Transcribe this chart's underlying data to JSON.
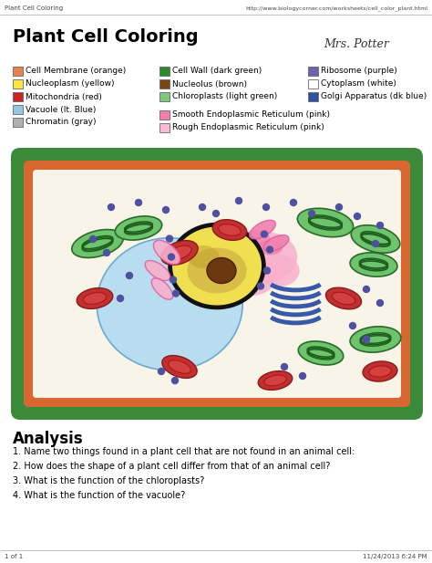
{
  "title": "Plant Cell Coloring",
  "header_left": "Plant Cell Coloring",
  "header_url": "http://www.biologycorner.com/worksheets/cell_color_plant.html",
  "handwriting": "Mrs. Potter",
  "legend_col1": [
    {
      "label": "Cell Membrane (orange)",
      "color": "#E8824A"
    },
    {
      "label": "Nucleoplasm (yellow)",
      "color": "#F5E642"
    },
    {
      "label": "Mitochondria (red)",
      "color": "#CC2222"
    },
    {
      "label": "Vacuole (lt. Blue)",
      "color": "#92C8E0"
    },
    {
      "label": "Chromatin (gray)",
      "color": "#B0B0B0"
    }
  ],
  "legend_col2": [
    {
      "label": "Cell Wall (dark green)",
      "color": "#2D8B2D"
    },
    {
      "label": "Nucleolus (brown)",
      "color": "#7B4513"
    },
    {
      "label": "Chloroplasts (light green)",
      "color": "#7DC87D"
    },
    {
      "label": "Smooth Endoplasmic Reticulum (pink)",
      "color": "#F47EB0"
    },
    {
      "label": "Rough Endoplasmic Reticulum (pink)",
      "color": "#F9B8D4"
    }
  ],
  "legend_col3": [
    {
      "label": "Ribosome (purple)",
      "color": "#7060B0"
    },
    {
      "label": "Cytoplasm (white)",
      "color": "#FFFFFF"
    },
    {
      "label": "Golgi Apparatus (dk blue)",
      "color": "#3050A0"
    }
  ],
  "analysis_title": "Analysis",
  "questions": [
    "1. Name two things found in a plant cell that are not found in an animal cell:",
    "2. How does the shape of a plant cell differ from that of an animal cell?",
    "3. What is the function of the chloroplasts?",
    "4. What is the function of the vacuole?"
  ],
  "footer_left": "1 of 1",
  "footer_right": "11/24/2013 6:24 PM",
  "bg_color": "#FFFFFF",
  "cell_wall_color": "#3A8A3A",
  "cell_membrane_color": "#D86830",
  "cytoplasm_color": "#F8F5E8",
  "vacuole_color": "#A8D4E8",
  "nucleus_yellow": "#F0E050",
  "nucleus_border": "#1A1A1A",
  "nucleolus_color": "#6B3810",
  "chromatin_color": "#D4B870",
  "mitochondria_color": "#C03030",
  "mitochondria_border": "#8B1A1A",
  "chloroplast_color": "#6DC46D",
  "chloroplast_border": "#2A6A2A",
  "golgi_color": "#4060B0",
  "er_smooth_color": "#F080B0",
  "er_rough_color": "#F8B0CC",
  "ribosome_color": "#5050A0",
  "vacuole_fill": "#B8DCF0",
  "golgi_apparatus_color": "#3858A8"
}
